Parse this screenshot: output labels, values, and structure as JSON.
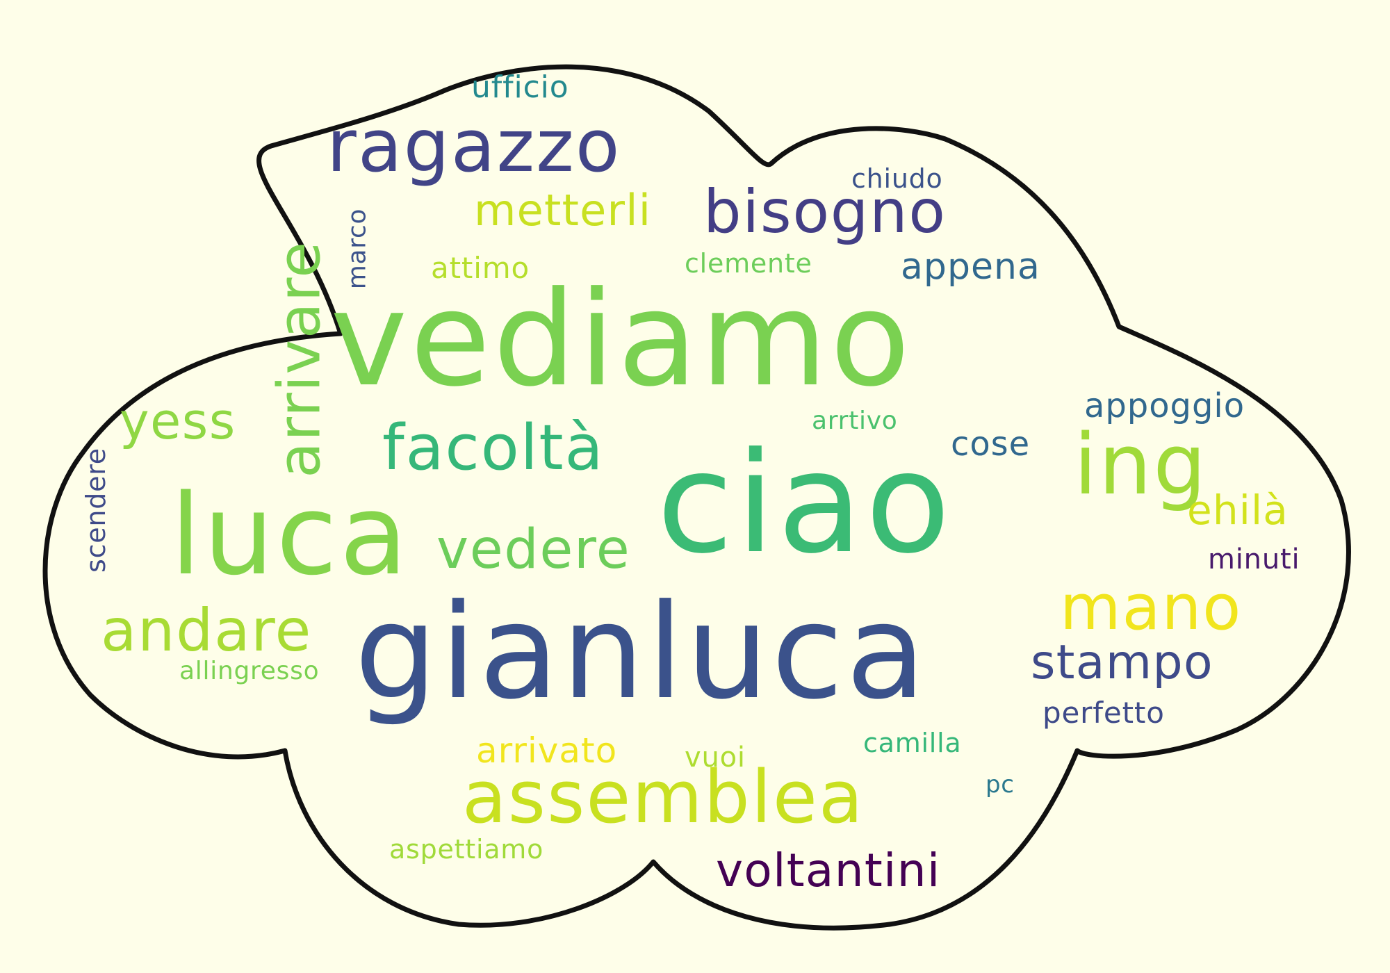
{
  "words": [
    {
      "text": "ufficio",
      "color": "#23898e"
    },
    {
      "text": "ragazzo",
      "color": "#414487"
    },
    {
      "text": "chiudo",
      "color": "#3b528b"
    },
    {
      "text": "metterli",
      "color": "#c8e020"
    },
    {
      "text": "bisogno",
      "color": "#433e85"
    },
    {
      "text": "arrivare",
      "color": "#7ad151"
    },
    {
      "text": "marco",
      "color": "#3b528b"
    },
    {
      "text": "attimo",
      "color": "#b5de2b"
    },
    {
      "text": "clemente",
      "color": "#6ccd5a"
    },
    {
      "text": "appena",
      "color": "#31688e"
    },
    {
      "text": "vediamo",
      "color": "#7ad151"
    },
    {
      "text": "yess",
      "color": "#8fd744"
    },
    {
      "text": "arrtivo",
      "color": "#4ac16d"
    },
    {
      "text": "appoggio",
      "color": "#31688e"
    },
    {
      "text": "facoltà",
      "color": "#35b779"
    },
    {
      "text": "cose",
      "color": "#31688e"
    },
    {
      "text": "ing",
      "color": "#a0da39"
    },
    {
      "text": "ciao",
      "color": "#3bbb75"
    },
    {
      "text": "scendere",
      "color": "#3e4a89"
    },
    {
      "text": "luca",
      "color": "#84d44b"
    },
    {
      "text": "ehilà",
      "color": "#d2e21b"
    },
    {
      "text": "vedere",
      "color": "#6ccd5a"
    },
    {
      "text": "minuti",
      "color": "#481a6c"
    },
    {
      "text": "andare",
      "color": "#a8db34"
    },
    {
      "text": "mano",
      "color": "#f1e51d"
    },
    {
      "text": "gianluca",
      "color": "#3b528b"
    },
    {
      "text": "stampo",
      "color": "#3e4a89"
    },
    {
      "text": "allingresso",
      "color": "#7ad151"
    },
    {
      "text": "perfetto",
      "color": "#3e4a89"
    },
    {
      "text": "arrivato",
      "color": "#f1e51d"
    },
    {
      "text": "vuoi",
      "color": "#addc30"
    },
    {
      "text": "camilla",
      "color": "#35b779"
    },
    {
      "text": "assemblea",
      "color": "#c8e020"
    },
    {
      "text": "pc",
      "color": "#2a788e"
    },
    {
      "text": "aspettiamo",
      "color": "#a0da39"
    },
    {
      "text": "voltantini",
      "color": "#440154"
    }
  ]
}
